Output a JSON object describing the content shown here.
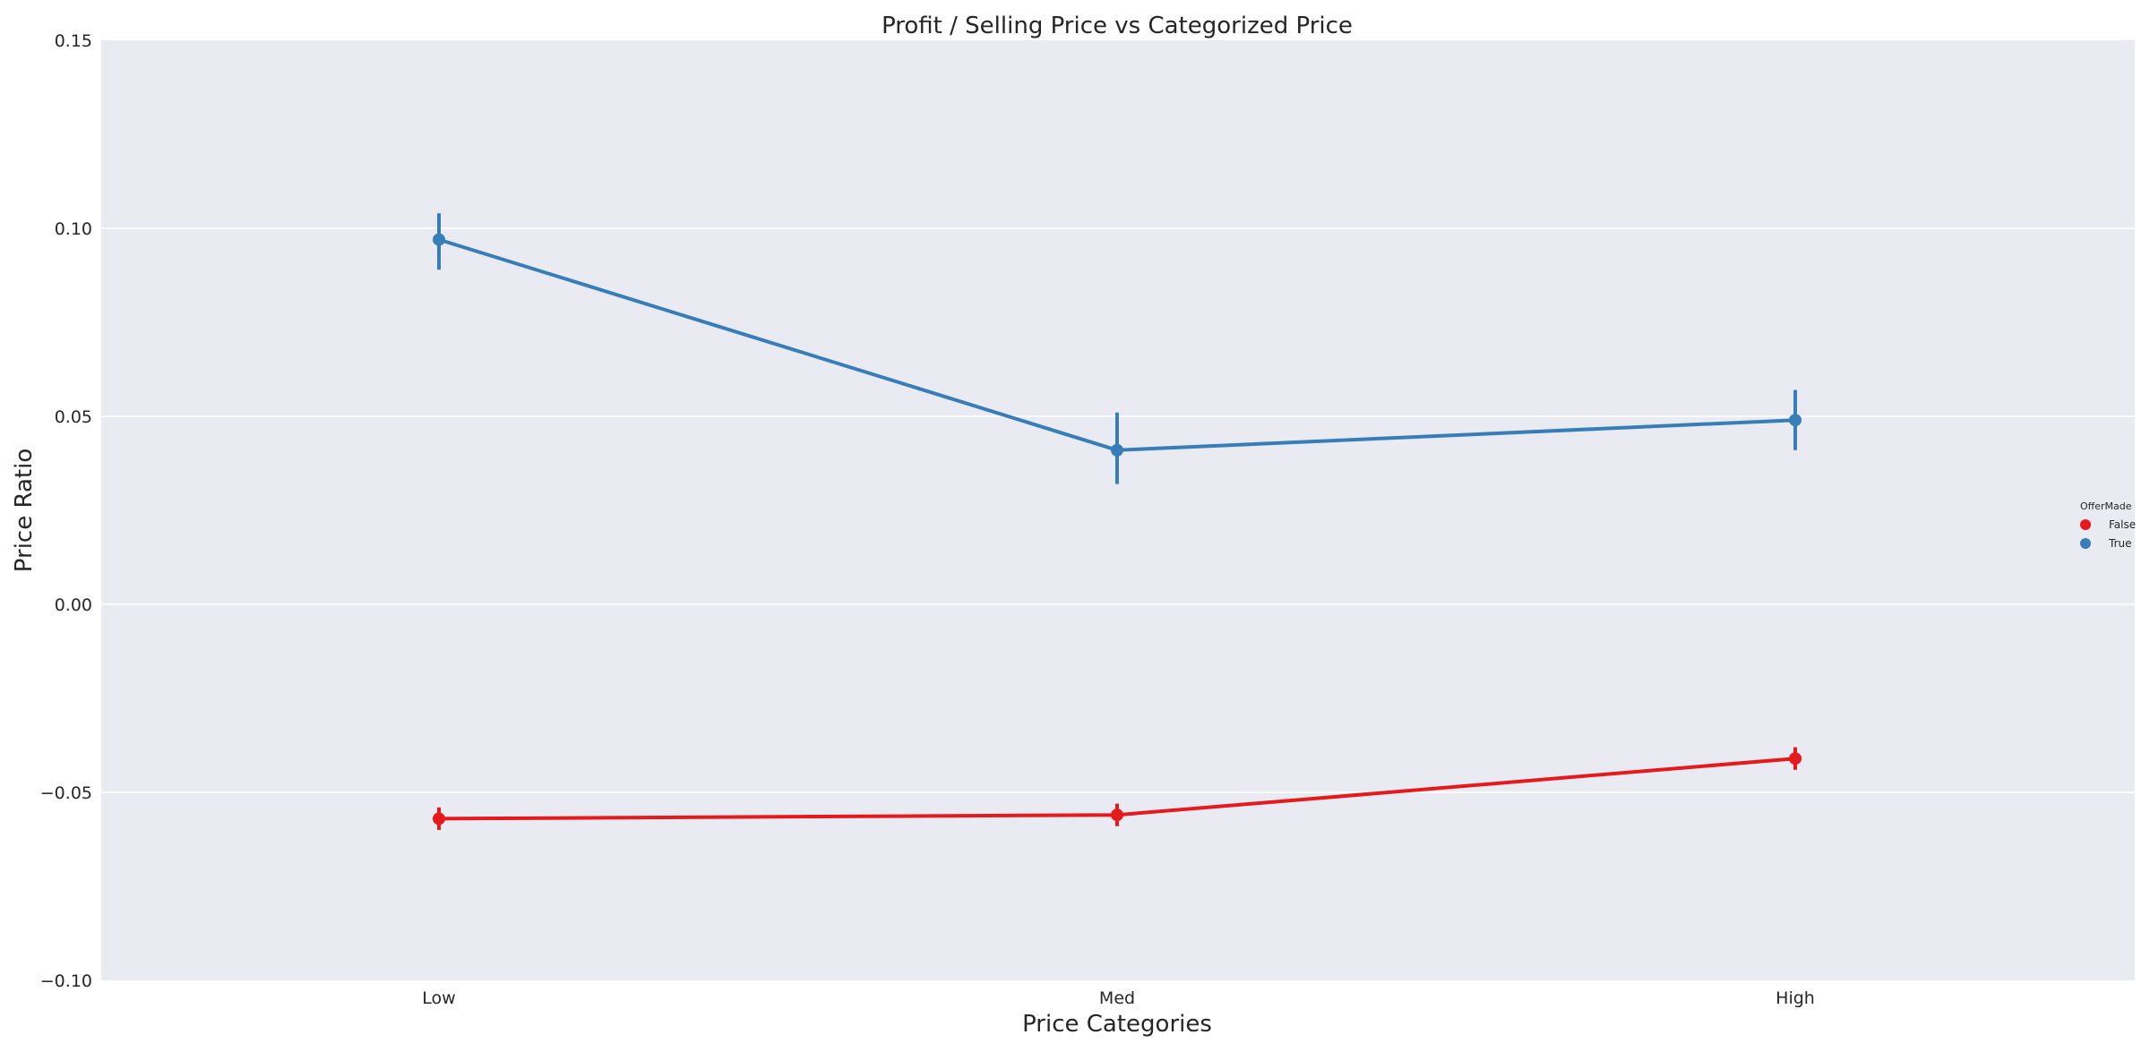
{
  "chart_data": {
    "type": "line",
    "title": "Profit / Selling Price vs Categorized Price",
    "xlabel": "Price Categories",
    "ylabel": "Price Ratio",
    "categories": [
      "Low",
      "Med",
      "High"
    ],
    "ylim": [
      -0.1,
      0.15
    ],
    "yticks": [
      -0.1,
      -0.05,
      0.0,
      0.05,
      0.1,
      0.15
    ],
    "ytick_labels": [
      "−0.10",
      "−0.05",
      "0.00",
      "0.05",
      "0.10",
      "0.15"
    ],
    "grid": true,
    "legend": {
      "title": "OfferMade",
      "position": "center-right"
    },
    "series": [
      {
        "name": "False",
        "color": "#e41a1c",
        "values": [
          -0.057,
          -0.056,
          -0.041
        ],
        "ci_low": [
          -0.06,
          -0.059,
          -0.044
        ],
        "ci_high": [
          -0.054,
          -0.053,
          -0.038
        ]
      },
      {
        "name": "True",
        "color": "#377eb8",
        "values": [
          0.097,
          0.041,
          0.049
        ],
        "ci_low": [
          0.089,
          0.032,
          0.041
        ],
        "ci_high": [
          0.104,
          0.051,
          0.057
        ]
      }
    ],
    "colors": {
      "background": "#eaeaf2",
      "grid": "#ffffff"
    }
  }
}
